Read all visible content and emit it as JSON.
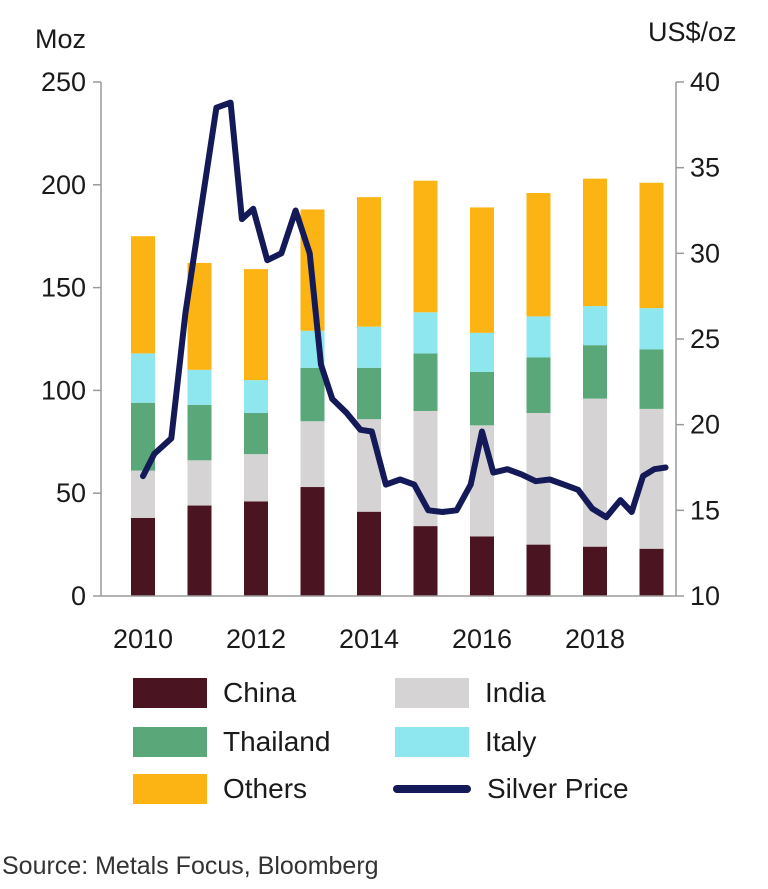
{
  "chart_data": {
    "type": "bar",
    "subtype": "stacked bar with line on secondary axis",
    "x_tick_labels": [
      "2010",
      "2012",
      "2014",
      "2016",
      "2018"
    ],
    "categories": [
      "2010",
      "2011",
      "2012",
      "2013",
      "2014",
      "2015",
      "2016",
      "2017",
      "2018",
      "2019"
    ],
    "y_left_label": "Moz",
    "y_left_ticks": [
      "0",
      "50",
      "100",
      "150",
      "200",
      "250"
    ],
    "y_left_lim": [
      0,
      250
    ],
    "y_right_label": "US$/oz",
    "y_right_ticks": [
      "10",
      "15",
      "20",
      "25",
      "30",
      "35",
      "40"
    ],
    "y_right_lim": [
      10,
      40
    ],
    "grid": false,
    "legend_position": "bottom",
    "series": [
      {
        "name": "China",
        "color": "#4a1520",
        "values": [
          38,
          44,
          46,
          53,
          41,
          34,
          29,
          25,
          24,
          23
        ]
      },
      {
        "name": "India",
        "color": "#d5d3d4",
        "values": [
          23,
          22,
          23,
          32,
          45,
          56,
          54,
          64,
          72,
          68
        ]
      },
      {
        "name": "Thailand",
        "color": "#5aa87a",
        "values": [
          33,
          27,
          20,
          26,
          25,
          28,
          26,
          27,
          26,
          29
        ]
      },
      {
        "name": "Italy",
        "color": "#8ee6ee",
        "values": [
          24,
          17,
          16,
          18,
          20,
          20,
          19,
          20,
          19,
          20
        ]
      },
      {
        "name": "Others",
        "color": "#fbb414",
        "values": [
          57,
          52,
          54,
          59,
          63,
          64,
          61,
          60,
          62,
          61
        ]
      }
    ],
    "line_series": {
      "name": "Silver Price",
      "color": "#131a57",
      "axis": "right",
      "x": [
        2010.0,
        2010.2,
        2010.5,
        2010.75,
        2011.0,
        2011.3,
        2011.55,
        2011.75,
        2011.95,
        2012.2,
        2012.45,
        2012.7,
        2012.95,
        2013.15,
        2013.35,
        2013.6,
        2013.85,
        2014.05,
        2014.3,
        2014.55,
        2014.8,
        2015.05,
        2015.3,
        2015.55,
        2015.8,
        2016.0,
        2016.2,
        2016.45,
        2016.7,
        2016.95,
        2017.2,
        2017.45,
        2017.7,
        2017.95,
        2018.2,
        2018.45,
        2018.65,
        2018.85,
        2019.05,
        2019.25
      ],
      "values": [
        17.0,
        18.3,
        19.2,
        26.5,
        32.0,
        38.5,
        38.8,
        32.0,
        32.6,
        29.6,
        30.0,
        32.5,
        30.0,
        23.5,
        21.5,
        20.7,
        19.7,
        19.6,
        16.5,
        16.8,
        16.5,
        15.0,
        14.9,
        15.0,
        16.5,
        19.6,
        17.2,
        17.4,
        17.1,
        16.7,
        16.8,
        16.5,
        16.2,
        15.1,
        14.6,
        15.6,
        14.9,
        17.0,
        17.4,
        17.5
      ]
    }
  },
  "source_text": "Source: Metals Focus, Bloomberg"
}
